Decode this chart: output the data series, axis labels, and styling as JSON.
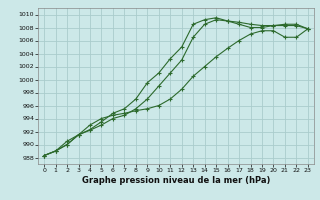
{
  "xlabel": "Graphe pression niveau de la mer (hPa)",
  "background_color": "#cce8e8",
  "grid_color": "#aacccc",
  "line_color": "#2d6a2d",
  "xlim": [
    -0.5,
    23.5
  ],
  "ylim": [
    987,
    1011
  ],
  "yticks": [
    988,
    990,
    992,
    994,
    996,
    998,
    1000,
    1002,
    1004,
    1006,
    1008,
    1010
  ],
  "xticks": [
    0,
    1,
    2,
    3,
    4,
    5,
    6,
    7,
    8,
    9,
    10,
    11,
    12,
    13,
    14,
    15,
    16,
    17,
    18,
    19,
    20,
    21,
    22,
    23
  ],
  "line1": [
    988.3,
    989.0,
    990.0,
    991.5,
    992.3,
    993.5,
    994.8,
    995.5,
    997.0,
    999.5,
    1001.0,
    1003.2,
    1005.0,
    1008.5,
    1009.2,
    1009.5,
    1009.0,
    1008.8,
    1008.5,
    1008.3,
    1008.3,
    1008.3,
    1008.3,
    1007.8
  ],
  "line2": [
    988.3,
    989.0,
    990.0,
    991.5,
    992.2,
    993.0,
    994.0,
    994.5,
    995.5,
    997.0,
    999.0,
    1001.0,
    1003.0,
    1006.5,
    1008.5,
    1009.2,
    1009.0,
    1008.5,
    1008.0,
    1008.0,
    1008.3,
    1008.5,
    1008.5,
    1007.8
  ],
  "line3": [
    988.3,
    989.0,
    990.5,
    991.5,
    993.0,
    994.0,
    994.5,
    994.8,
    995.2,
    995.5,
    996.0,
    997.0,
    998.5,
    1000.5,
    1002.0,
    1003.5,
    1004.8,
    1006.0,
    1007.0,
    1007.5,
    1007.5,
    1006.5,
    1006.5,
    1007.8
  ],
  "tick_labelsize": 4.5,
  "xlabel_fontsize": 6.0,
  "marker_size": 3.0,
  "line_width": 0.8
}
